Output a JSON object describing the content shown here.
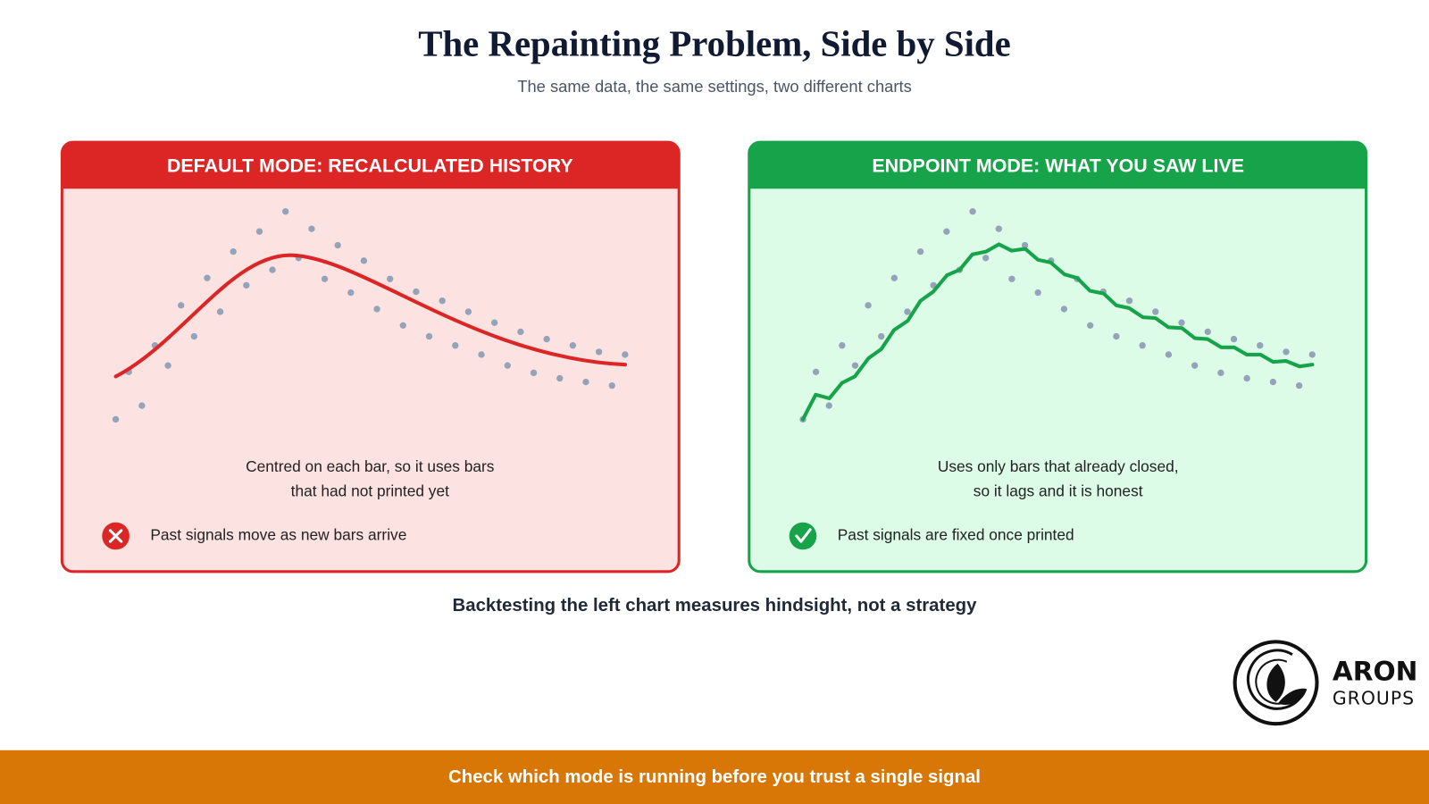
{
  "title": "The Repainting Problem, Side by Side",
  "subtitle": "The same data, the same settings, two different charts",
  "panels": [
    {
      "header": "DEFAULT MODE: RECALCULATED HISTORY",
      "caption": [
        "Centred on each bar, so it uses bars",
        "that had not printed yet"
      ],
      "signal": "Past signals move as new bars arrive"
    },
    {
      "header": "ENDPOINT MODE: WHAT YOU SAW LIVE",
      "caption": [
        "Uses only bars that already closed,",
        "so it lags and it is honest"
      ],
      "signal": "Past signals are fixed once printed"
    }
  ],
  "note": "Backtesting the left chart measures hindsight, not a strategy",
  "logo": {
    "name": "ARON",
    "tagline": "GROUPS"
  },
  "footer": "Check which mode is running before you trust a single signal"
}
